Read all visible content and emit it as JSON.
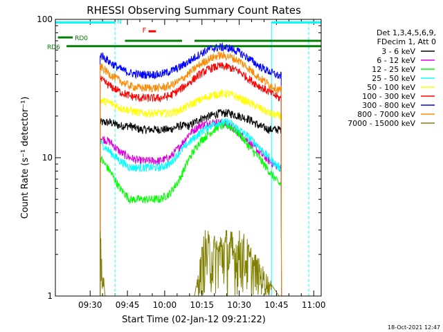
{
  "chart_data": {
    "type": "line",
    "title": "RHESSI Observing Summary Count Rates",
    "xlabel": "Start Time (02-Jan-12 09:21:22)",
    "ylabel": "Count Rate (s⁻¹ detector⁻¹)",
    "yscale": "log",
    "ylim": [
      1,
      100
    ],
    "xlim_minutes": [
      -4,
      103
    ],
    "xtick_minutes": [
      10,
      25,
      40,
      55,
      70,
      85,
      100
    ],
    "xtick_labels": [
      "09:30",
      "09:45",
      "10:00",
      "10:15",
      "10:30",
      "10:45",
      "11:00"
    ],
    "ytick_values": [
      1,
      10,
      100
    ],
    "ytick_labels": [
      "1",
      "10",
      "100"
    ],
    "legend_header": [
      "Det 1,3,4,5,6,9,",
      "FDecim 1, Att 0"
    ],
    "series": [
      {
        "name": "3 - 6 keV",
        "color": "#000000",
        "x": [
          14,
          18,
          22,
          26,
          30,
          34,
          38,
          42,
          46,
          50,
          54,
          58,
          62,
          66,
          70,
          74,
          78,
          82,
          86,
          87
        ],
        "values": [
          18,
          18,
          17,
          17,
          16,
          16,
          16,
          16,
          17,
          17,
          19,
          20,
          21,
          21,
          20,
          19,
          17,
          16,
          16,
          16
        ]
      },
      {
        "name": "6 - 12 keV",
        "color": "#dd00dd",
        "x": [
          14,
          18,
          22,
          26,
          30,
          34,
          38,
          42,
          46,
          50,
          54,
          58,
          62,
          66,
          70,
          74,
          78,
          82,
          86,
          87
        ],
        "values": [
          14,
          13,
          11,
          10,
          9.5,
          9.5,
          9.5,
          10,
          12,
          15,
          17,
          18,
          18,
          17,
          15,
          13,
          11,
          9.5,
          8.5,
          8.5
        ]
      },
      {
        "name": "12 - 25 keV",
        "color": "#00ff00",
        "x": [
          14,
          18,
          22,
          26,
          30,
          34,
          38,
          42,
          46,
          50,
          54,
          58,
          62,
          66,
          70,
          74,
          78,
          82,
          86,
          87
        ],
        "values": [
          10,
          8,
          6,
          5,
          5,
          5,
          5,
          5.5,
          7,
          10,
          13,
          15,
          17,
          17,
          15,
          12,
          10,
          8,
          6.5,
          6.5
        ]
      },
      {
        "name": "25 - 50 keV",
        "color": "#00ffff",
        "x": [
          14,
          18,
          22,
          26,
          30,
          34,
          38,
          42,
          46,
          50,
          54,
          58,
          62,
          66,
          70,
          74,
          78,
          82,
          86,
          87
        ],
        "values": [
          13,
          11,
          9.5,
          8.5,
          8.5,
          8.5,
          8.5,
          9,
          11,
          13,
          15,
          17,
          18,
          18,
          16,
          14,
          12,
          10,
          8.5,
          8.5
        ]
      },
      {
        "name": "50 - 100 keV",
        "color": "#ffff00",
        "x": [
          14,
          18,
          22,
          26,
          30,
          34,
          38,
          42,
          46,
          50,
          54,
          58,
          62,
          66,
          70,
          74,
          78,
          82,
          86,
          87
        ],
        "values": [
          26,
          25,
          23,
          22,
          21,
          21,
          21,
          21,
          22,
          24,
          26,
          28,
          29,
          29,
          27,
          25,
          23,
          21,
          20,
          20
        ]
      },
      {
        "name": "100 - 300 keV",
        "color": "#ff0000",
        "x": [
          14,
          18,
          22,
          26,
          30,
          34,
          38,
          42,
          46,
          50,
          54,
          58,
          62,
          66,
          70,
          74,
          78,
          82,
          86,
          87
        ],
        "values": [
          37,
          33,
          30,
          28,
          27,
          27,
          27,
          28,
          31,
          35,
          40,
          44,
          46,
          45,
          42,
          37,
          33,
          30,
          27,
          27
        ]
      },
      {
        "name": "300 - 800 keV",
        "color": "#0000ff",
        "x": [
          14,
          18,
          22,
          26,
          30,
          34,
          38,
          42,
          46,
          50,
          54,
          58,
          62,
          66,
          70,
          74,
          78,
          82,
          86,
          87
        ],
        "values": [
          56,
          49,
          44,
          41,
          40,
          40,
          40,
          42,
          45,
          50,
          56,
          61,
          63,
          62,
          58,
          52,
          46,
          42,
          39,
          39
        ]
      },
      {
        "name": "800 - 7000 keV",
        "color": "#ff8800",
        "x": [
          14,
          18,
          22,
          26,
          30,
          34,
          38,
          42,
          46,
          50,
          54,
          58,
          62,
          66,
          70,
          74,
          78,
          82,
          86,
          87
        ],
        "values": [
          46,
          40,
          36,
          33,
          32,
          32,
          32,
          33,
          36,
          41,
          47,
          52,
          55,
          54,
          50,
          44,
          38,
          34,
          31,
          31
        ]
      },
      {
        "name": "7000 - 15000 keV",
        "color": "#808000",
        "x": [
          14,
          16,
          18,
          52,
          56,
          60,
          64,
          68,
          71,
          86,
          87
        ],
        "values": [
          2.6,
          1.0,
          1.0,
          1.0,
          2.6,
          2.4,
          2.7,
          2.5,
          2.6,
          1.0,
          1.0
        ]
      }
    ],
    "annotations": [
      {
        "label": "N",
        "color": "#00ffff"
      },
      {
        "label": "RD0",
        "color": "#008000"
      },
      {
        "label": "RD6",
        "color": "#008000"
      },
      {
        "label": "F",
        "color": "#ff0000"
      }
    ],
    "footer_date": "18-Oct-2021 12:47"
  }
}
